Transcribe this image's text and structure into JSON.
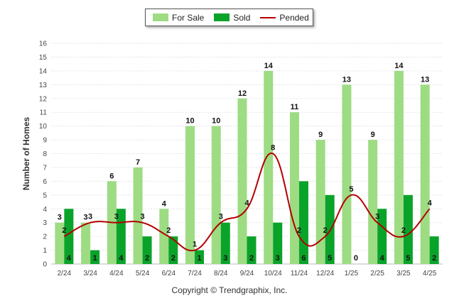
{
  "chart_data": {
    "type": "bar",
    "ylabel": "Number of Homes",
    "ylim": [
      0,
      16
    ],
    "yticks": [
      0,
      1,
      2,
      3,
      4,
      5,
      6,
      7,
      8,
      9,
      10,
      11,
      12,
      13,
      14,
      15,
      16
    ],
    "categories": [
      "2/24",
      "3/24",
      "4/24",
      "5/24",
      "6/24",
      "7/24",
      "8/24",
      "9/24",
      "10/24",
      "11/24",
      "12/24",
      "1/25",
      "2/25",
      "3/25",
      "4/25"
    ],
    "series": [
      {
        "name": "For Sale",
        "kind": "bar",
        "color": "#9ddc83",
        "values": [
          3,
          3,
          6,
          7,
          4,
          10,
          10,
          12,
          14,
          11,
          9,
          13,
          9,
          14,
          13
        ]
      },
      {
        "name": "Sold",
        "kind": "bar",
        "color": "#0aa32a",
        "values": [
          4,
          1,
          4,
          2,
          2,
          1,
          3,
          2,
          3,
          6,
          5,
          0,
          4,
          5,
          2
        ]
      },
      {
        "name": "Pended",
        "kind": "line",
        "color": "#b30000",
        "values": [
          2,
          3,
          3,
          3,
          2,
          1,
          3,
          4,
          8,
          2,
          2,
          5,
          3,
          2,
          4
        ]
      }
    ],
    "legend_position": "top-center",
    "grid": true
  },
  "copyright": "Copyright © Trendgraphix, Inc."
}
